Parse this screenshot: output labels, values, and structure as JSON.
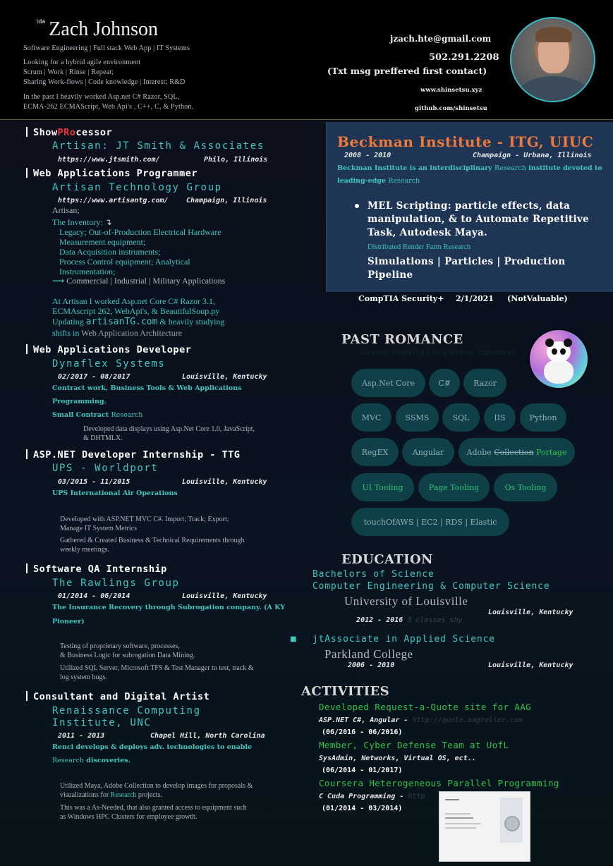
{
  "header": {
    "name_prefix": "ida",
    "name": "Zach Johnson",
    "tagline": "Software Engineering | Full stack Web App | IT Systems",
    "intro1": "Looking for a hybrid agile environment",
    "intro2": "Scrum | Work | Rinse | Repeat;",
    "intro3": "Sharing Work-flows | Code knowledge | Interest; R&D",
    "past1": "In the past I heavily worked Asp.net C# Razor, SQL,",
    "past2": "ECMA-262 ECMAScript, Web Api's , C++, C, & Python.",
    "email": "jzach.hte@gmail.com",
    "phone": "502.291.2208",
    "phone_note": "(Txt msg preffered first contact)",
    "website": "www.shinsetsu.xyz",
    "github": "github.com/shinsetsu"
  },
  "jobs": [
    {
      "title_a": "Show",
      "title_b": "PRo",
      "title_c": "cessor",
      "company": "Artisan: JT Smith & Associates",
      "url": "https://www.jtsmith.com/",
      "location": "Philo, Illinois"
    },
    {
      "title": "Web Applications Programmer",
      "company": "Artisan Technology Group",
      "url": "https://www.artisantg.com/",
      "location": "Champaign, Illinois",
      "line1": "Artisan;",
      "inventory_label": "The Inventory:",
      "inventory_arrow": "↴",
      "inv1": "Legacy; Out-of-Production Electrical Hardware",
      "inv2": "Measurement equipment;",
      "inv3": "Data Acquisition instruments;",
      "inv4": "Process Control equipment; Analytical",
      "inv5": "Instrumentation;",
      "inv6_arrow": "⟿",
      "inv6": "Commercial | Industrial | Military Applications",
      "work1": "At Artisan I worked Asp.net Core C# Razor 3.1,",
      "work2": "ECMAscript 262, WebApi's, & BeautifulSoup.py",
      "work3a": "Updating",
      "work3b": "artisanTG.com",
      "work3c": "& heavily studying",
      "work4a": "shifts in",
      "work4b": "Web Application Architecture"
    },
    {
      "title": "Web Applications Developer",
      "company": "Dynaflex Systems",
      "dates": "02/2017 - 08/2017",
      "location": "Louisville, Kentucky",
      "d1": "Contract work, Business Tools & Web Applications",
      "d2": "Programming.",
      "d3a": "Small Contract",
      "d3b": "Research",
      "g1": "Developed data displays using Asp.Net Core 1.0, JavaScript,",
      "g2": "& DHTMLX."
    },
    {
      "title": "ASP.NET Developer Internship - TTG",
      "company": "UPS - Worldport",
      "dates": "03/2015 - 11/2015",
      "location": "Louisville, Kentucky",
      "d1": "UPS International Air Operations",
      "g1": "Developed with ASP.NET MVC C#. Import; Track; Export;",
      "g2": "Manage IT System Metrics",
      "g3": "Gathered & Created Business & Technical Requirements through",
      "g4": "weekly meetings."
    },
    {
      "title": "Software QA Internship",
      "company": "The Rawlings Group",
      "dates": "01/2014 - 06/2014",
      "location": "Louisville, Kentucky",
      "d1": "The Insurance Recovery through Subrogation company. (A KY",
      "d2": "Pioneer)",
      "g1": "Testing of proprietary software, processes,",
      "g2": "& Business Logic for subrogation Data Mining.",
      "g3": "Utilized SQL Server, Microsoft TFS & Test Manager to test, track &",
      "g4": "log system bugs."
    },
    {
      "title": "Consultant and Digital Artist",
      "company1": "Renaissance Computing",
      "company2": "Institute, UNC",
      "dates": "2011 - 2013",
      "location": "Chapel Hill, North Carolina",
      "d1": "Renci develops & deploys adv. technologies to enable",
      "d2a": "Research",
      "d2b": "discoveries.",
      "g1": "Utilized Maya, Adobe Collection to develop images for proposals &",
      "g2a": "visualizations for",
      "g2b": "Research",
      "g2c": "projects.",
      "g3": "This was a As-Needed, that also granted access to equipment such",
      "g4": "as Windows HPC Clusters for employee growth."
    }
  ],
  "beckman": {
    "title": "Beckman Institute - ITG, UIUC",
    "dates": "2008 - 2010",
    "location": "Champaign - Urbana, Illinois",
    "desc1a": "Beckman Institute is an interdisciplinary",
    "desc1b": "Research",
    "desc1c": "institute devoted to",
    "desc2a": "leading-edge",
    "desc2b": "Research",
    "bullet1": "MEL Scripting: particle effects, data",
    "bullet2": "manipulation, & to Automate Repetitive",
    "bullet3": "Task, Autodesk Maya.",
    "farm": "Distributed Render Farm Research",
    "sim1": "Simulations | Particles | Production",
    "sim2": "Pipeline"
  },
  "comptia": {
    "name": "CompTIA Security+",
    "date": "2/1/2021",
    "note": "(NotValuable)"
  },
  "past_romance": {
    "heading": "PAST ROMANCE",
    "subheading": "Green highlights Future Interest",
    "pills": [
      "Asp.Net Core",
      "C#",
      "Razor",
      "MVC",
      "SSMS",
      "SQL",
      "IIS",
      "Python",
      "RegEX",
      "Angular",
      "UI Tooling",
      "Page Tooling",
      "Os Tooling",
      "touchOfAWS | EC2 | RDS | Elastic"
    ],
    "adobe_a": "Adobe",
    "adobe_b": "Collection",
    "adobe_c": "Portage"
  },
  "education": {
    "heading": "EDUCATION",
    "degree1": "Bachelors of Science",
    "degree2": "Computer Engineering & Computer Science",
    "school1": "University of Louisville",
    "dates1": "2012 - 2016",
    "note1": "3 classes shy",
    "loc1": "Louisville, Kentucky",
    "bullet": "■",
    "degree3": "jtAssociate in Applied Science",
    "school2": "Parkland College",
    "dates2": "2006 - 2010",
    "loc2": "Louisville, Kentucky"
  },
  "activities": {
    "heading": "ACTIVITIES",
    "items": [
      {
        "title": "Developed Request-a-Quote site for AAG",
        "sub": "ASP.NET C#, Angular -",
        "faint": "http://quote.aagroller.com",
        "date": "(06/2016 - 06/2016)"
      },
      {
        "title": "Member, Cyber Defense Team at UofL",
        "sub": "SysAdmin, Networks, Virtual OS, ect..",
        "faint": "",
        "date": "(06/2014 - 01/2017)"
      },
      {
        "title": "Coursera Heterogeneous Parallel Programming",
        "sub": "C Cuda Programming -",
        "faint": "http",
        "date": "(01/2014 - 03/2014)"
      }
    ]
  },
  "colors": {
    "accent_teal": "#3fc6c0",
    "accent_orange": "#f0793a",
    "accent_green": "#2ec44a",
    "panel_blue": "#1e3556",
    "pill_bg": "#0f3f47"
  }
}
